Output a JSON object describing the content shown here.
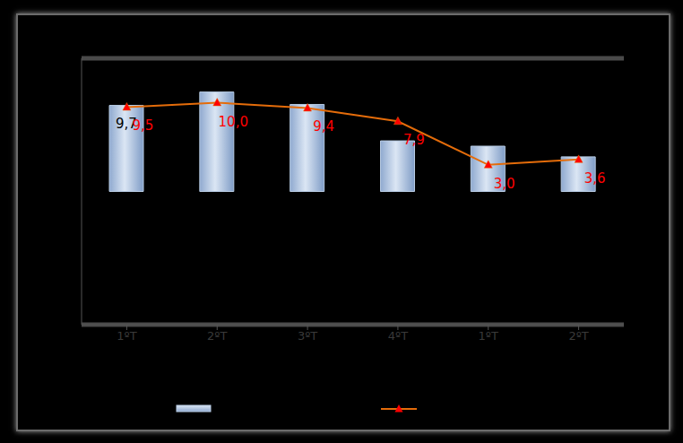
{
  "chart_data": {
    "type": "bar",
    "categories": [
      "1ºT",
      "2ºT",
      "3ºT",
      "4ºT",
      "1ºT",
      "2ºT"
    ],
    "ylim": [
      -15,
      15
    ],
    "yticks": [
      -15,
      -10,
      -5,
      0,
      5,
      10,
      15
    ],
    "grid": true,
    "tick_labels": "x",
    "legend": "bottom",
    "series": [
      {
        "type": "bar",
        "color": "#b8cce4",
        "values": [
          9.7,
          11.2,
          9.8,
          5.7,
          5.1,
          3.9
        ],
        "value_labels": [
          "9,7",
          null,
          null,
          null,
          null,
          null
        ],
        "data_labels": true
      },
      {
        "type": "line",
        "color": "#e46c0a",
        "marker": "triangle",
        "values": [
          9.5,
          10.0,
          9.4,
          7.9,
          3.0,
          3.6
        ],
        "value_labels": [
          "9,5",
          "10,0",
          "9,4",
          "7,9",
          "3,0",
          "3,6"
        ],
        "data_labels": true
      }
    ]
  }
}
